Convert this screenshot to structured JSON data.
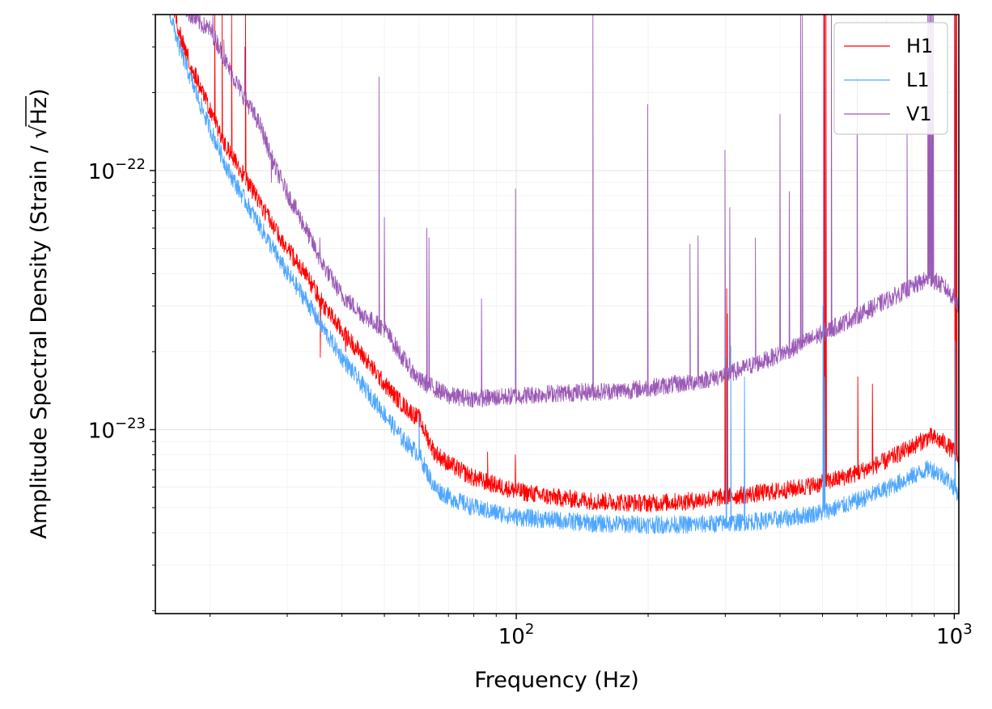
{
  "chart_data": {
    "type": "line",
    "title": "",
    "xlabel": "Frequency (Hz)",
    "ylabel_prefix": "Amplitude Spectral Density (Strain / ",
    "ylabel_radicand": "Hz",
    "ylabel_suffix": ")",
    "xscale": "log",
    "yscale": "log",
    "xlim": [
      15,
      1024
    ],
    "ylim": [
      1.95e-24,
      4e-22
    ],
    "x_ticks": [
      {
        "value": 100,
        "base": "10",
        "exp": "2"
      },
      {
        "value": 1000,
        "base": "10",
        "exp": "3"
      }
    ],
    "y_ticks": [
      {
        "value": 1e-23,
        "base": "10",
        "exp": "−23"
      },
      {
        "value": 1e-22,
        "base": "10",
        "exp": "−22"
      }
    ],
    "grid": true,
    "legend_position": "top-right",
    "series": [
      {
        "name": "H1",
        "color": "#ff0000",
        "points": [
          [
            16.3,
            4.5e-22
          ],
          [
            17,
            3.4e-22
          ],
          [
            18,
            2.6e-22
          ],
          [
            19,
            2.1e-22
          ],
          [
            20,
            1.7e-22
          ],
          [
            21,
            1.4e-22
          ],
          [
            22,
            1.2e-22
          ],
          [
            24,
            9.4e-23
          ],
          [
            26,
            7.5e-23
          ],
          [
            28,
            6.1e-23
          ],
          [
            30,
            5e-23
          ],
          [
            33,
            4e-23
          ],
          [
            36,
            3.1e-23
          ],
          [
            40,
            2.4e-23
          ],
          [
            45,
            1.9e-23
          ],
          [
            50,
            1.5e-23
          ],
          [
            55,
            1.25e-23
          ],
          [
            60,
            1.1e-23
          ],
          [
            65,
            8.2e-24
          ],
          [
            70,
            7.4e-24
          ],
          [
            80,
            6.5e-24
          ],
          [
            90,
            6.1e-24
          ],
          [
            100,
            5.8e-24
          ],
          [
            120,
            5.5e-24
          ],
          [
            150,
            5.3e-24
          ],
          [
            200,
            5.2e-24
          ],
          [
            250,
            5.3e-24
          ],
          [
            300,
            5.5e-24
          ],
          [
            400,
            5.8e-24
          ],
          [
            500,
            6.2e-24
          ],
          [
            600,
            6.8e-24
          ],
          [
            700,
            7.6e-24
          ],
          [
            800,
            8.6e-24
          ],
          [
            880,
            9.4e-24
          ],
          [
            950,
            8.9e-24
          ],
          [
            1000,
            8.2e-24
          ],
          [
            1024,
            7.6e-24
          ]
        ],
        "lines": [
          {
            "f": 20.5,
            "peak": 4e-22
          },
          {
            "f": 21.3,
            "peak": 4e-22
          },
          {
            "f": 22.4,
            "peak": 4e-22
          },
          {
            "f": 24.1,
            "peak": 4e-22
          },
          {
            "f": 35.7,
            "peak": 1.9e-23
          },
          {
            "f": 40.8,
            "peak": 2e-23
          },
          {
            "f": 60.0,
            "peak": 1.2e-23
          },
          {
            "f": 86.0,
            "peak": 8.2e-24
          },
          {
            "f": 99.5,
            "peak": 8e-24
          },
          {
            "f": 299.6,
            "peak": 6.5e-23
          },
          {
            "f": 302.2,
            "peak": 3.5e-23
          },
          {
            "f": 303.3,
            "peak": 2.8e-23
          },
          {
            "f": 504.7,
            "peak": 4e-22
          },
          {
            "f": 506.3,
            "peak": 4e-22
          },
          {
            "f": 509.5,
            "peak": 4e-22
          },
          {
            "f": 602.1,
            "peak": 1.6e-23
          },
          {
            "f": 650.3,
            "peak": 1.5e-23
          },
          {
            "f": 1003.3,
            "peak": 4e-22
          },
          {
            "f": 1008.0,
            "peak": 4e-22
          },
          {
            "f": 1012.5,
            "peak": 4e-22
          }
        ]
      },
      {
        "name": "L1",
        "color": "#4da6ff",
        "points": [
          [
            16.1,
            4.2e-22
          ],
          [
            17,
            3e-22
          ],
          [
            18,
            2.3e-22
          ],
          [
            19,
            1.8e-22
          ],
          [
            20,
            1.45e-22
          ],
          [
            22,
            1e-22
          ],
          [
            24,
            7.7e-23
          ],
          [
            26,
            6.1e-23
          ],
          [
            28,
            4.9e-23
          ],
          [
            30,
            4e-23
          ],
          [
            33,
            3.2e-23
          ],
          [
            36,
            2.5e-23
          ],
          [
            40,
            1.9e-23
          ],
          [
            45,
            1.45e-23
          ],
          [
            50,
            1.15e-23
          ],
          [
            55,
            9.2e-24
          ],
          [
            60,
            8e-24
          ],
          [
            65,
            6e-24
          ],
          [
            70,
            5.5e-24
          ],
          [
            80,
            5e-24
          ],
          [
            100,
            4.6e-24
          ],
          [
            150,
            4.35e-24
          ],
          [
            200,
            4.3e-24
          ],
          [
            250,
            4.3e-24
          ],
          [
            300,
            4.35e-24
          ],
          [
            400,
            4.5e-24
          ],
          [
            500,
            4.8e-24
          ],
          [
            600,
            5.3e-24
          ],
          [
            700,
            5.9e-24
          ],
          [
            800,
            6.6e-24
          ],
          [
            880,
            7.1e-24
          ],
          [
            950,
            6.6e-24
          ],
          [
            1000,
            6e-24
          ],
          [
            1024,
            5.6e-24
          ]
        ],
        "lines": [
          {
            "f": 60.0,
            "peak": 1.15e-23
          },
          {
            "f": 301.5,
            "peak": 1.9e-23
          },
          {
            "f": 308.8,
            "peak": 2.1e-23
          },
          {
            "f": 331.9,
            "peak": 1.6e-23
          },
          {
            "f": 501.6,
            "peak": 3e-23
          },
          {
            "f": 502.5,
            "peak": 3e-23
          },
          {
            "f": 506.0,
            "peak": 1.6e-23
          },
          {
            "f": 1003.3,
            "peak": 2.2e-23
          }
        ]
      },
      {
        "name": "V1",
        "color": "#9b59b6",
        "points": [
          [
            17.2,
            4.5e-22
          ],
          [
            18,
            4e-22
          ],
          [
            19,
            3.7e-22
          ],
          [
            20,
            3.5e-22
          ],
          [
            21,
            3e-22
          ],
          [
            22,
            2.5e-22
          ],
          [
            24,
            1.9e-22
          ],
          [
            26,
            1.5e-22
          ],
          [
            28,
            1.05e-22
          ],
          [
            30,
            8.2e-23
          ],
          [
            33,
            6e-23
          ],
          [
            36,
            4.4e-23
          ],
          [
            40,
            3.3e-23
          ],
          [
            45,
            2.75e-23
          ],
          [
            50,
            2.45e-23
          ],
          [
            55,
            1.9e-23
          ],
          [
            60,
            1.55e-23
          ],
          [
            65,
            1.45e-23
          ],
          [
            70,
            1.35e-23
          ],
          [
            80,
            1.32e-23
          ],
          [
            90,
            1.33e-23
          ],
          [
            100,
            1.35e-23
          ],
          [
            120,
            1.38e-23
          ],
          [
            150,
            1.4e-23
          ],
          [
            180,
            1.42e-23
          ],
          [
            200,
            1.45e-23
          ],
          [
            250,
            1.52e-23
          ],
          [
            300,
            1.62e-23
          ],
          [
            400,
            1.95e-23
          ],
          [
            500,
            2.35e-23
          ],
          [
            600,
            2.75e-23
          ],
          [
            700,
            3.15e-23
          ],
          [
            800,
            3.55e-23
          ],
          [
            880,
            3.85e-23
          ],
          [
            950,
            3.55e-23
          ],
          [
            1000,
            3.2e-23
          ],
          [
            1024,
            3e-23
          ]
        ],
        "lines": [
          {
            "f": 20.3,
            "peak": 4e-22
          },
          {
            "f": 21.5,
            "peak": 3.2e-22
          },
          {
            "f": 24.0,
            "peak": 3e-22
          },
          {
            "f": 27.6,
            "peak": 9e-23
          },
          {
            "f": 35.6,
            "peak": 5.5e-23
          },
          {
            "f": 48.6,
            "peak": 2.3e-22
          },
          {
            "f": 50.0,
            "peak": 6.6e-23
          },
          {
            "f": 62.5,
            "peak": 6e-23
          },
          {
            "f": 63.2,
            "peak": 5.5e-23
          },
          {
            "f": 83.3,
            "peak": 3.2e-23
          },
          {
            "f": 99.6,
            "peak": 8.5e-23
          },
          {
            "f": 149.6,
            "peak": 4e-22
          },
          {
            "f": 199.5,
            "peak": 1.8e-22
          },
          {
            "f": 249.2,
            "peak": 5.2e-23
          },
          {
            "f": 260.0,
            "peak": 5.6e-23
          },
          {
            "f": 299.5,
            "peak": 1.2e-22
          },
          {
            "f": 307.2,
            "peak": 7.2e-23
          },
          {
            "f": 351.5,
            "peak": 5.5e-23
          },
          {
            "f": 400.0,
            "peak": 1.65e-22
          },
          {
            "f": 420.0,
            "peak": 8.3e-23
          },
          {
            "f": 446.0,
            "peak": 4e-22
          },
          {
            "f": 450.0,
            "peak": 4e-22
          },
          {
            "f": 503.0,
            "peak": 4e-22
          },
          {
            "f": 524.0,
            "peak": 4e-22
          },
          {
            "f": 600.0,
            "peak": 2.3e-22
          },
          {
            "f": 780.0,
            "peak": 1.45e-22
          },
          {
            "f": 870.0,
            "peak": 4e-22
          },
          {
            "f": 875.0,
            "peak": 4e-22
          },
          {
            "f": 880.0,
            "peak": 4e-22
          },
          {
            "f": 885.0,
            "peak": 4e-22
          },
          {
            "f": 890.0,
            "peak": 4e-22
          },
          {
            "f": 895.0,
            "peak": 4e-22
          },
          {
            "f": 1000.0,
            "peak": 4e-22
          }
        ]
      }
    ]
  }
}
